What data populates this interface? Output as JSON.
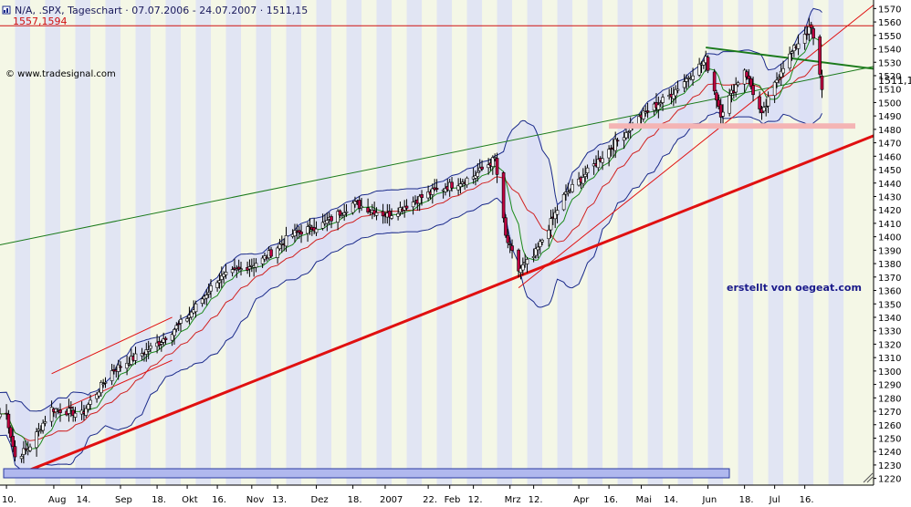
{
  "header": {
    "title_text": "N/A, .SPX, Tageschart · 07.07.2006 - 24.07.2007 · 1511,15",
    "ref_level_label": "1557,1594",
    "watermark": "© www.tradesignal.com",
    "credit": "erstellt von oegeat.com"
  },
  "colors": {
    "stripe_light": "#f4f7e6",
    "stripe_dark": "#e1e5f3",
    "up_candle": "#ffffff",
    "down_candle": "#c00040",
    "bollinger": "#1a2a8a",
    "ma_fast": "#1a8a1a",
    "ma_slow": "#d02020",
    "support_line": "#e01010",
    "green_trend": "#1a7a1a",
    "zone": "#f4b4b4",
    "bottom_bar": "#b0b8ee",
    "ref_line": "#d01010"
  },
  "chart_data": {
    "type": "candlestick",
    "title": "N/A, .SPX, Tageschart",
    "period": "07.07.2006 - 24.07.2007",
    "last_value": 1511.15,
    "last_value_label": "1511,15",
    "ylim": [
      1215,
      1575
    ],
    "y_ticks": [
      1220,
      1230,
      1240,
      1250,
      1260,
      1270,
      1280,
      1290,
      1300,
      1310,
      1320,
      1330,
      1340,
      1350,
      1360,
      1370,
      1380,
      1390,
      1400,
      1410,
      1420,
      1430,
      1440,
      1450,
      1460,
      1470,
      1480,
      1490,
      1500,
      1510,
      1520,
      1530,
      1540,
      1550,
      1560,
      1570
    ],
    "x_tick_labels": [
      "10.",
      "Aug",
      "14.",
      "Sep",
      "18.",
      "Okt",
      "16.",
      "Nov",
      "13.",
      "Dez",
      "18.",
      "2007",
      "22.",
      "Feb",
      "12.",
      "Mrz",
      "12.",
      "Apr",
      "16.",
      "Mai",
      "14.",
      "Jun",
      "18.",
      "Jul",
      "16."
    ],
    "reference_level": 1557.1594,
    "approx_close_path": [
      {
        "date": "2006-07-10",
        "close": 1268
      },
      {
        "date": "2006-07-14",
        "close": 1236
      },
      {
        "date": "2006-07-20",
        "close": 1242
      },
      {
        "date": "2006-07-31",
        "close": 1272
      },
      {
        "date": "2006-08-14",
        "close": 1268
      },
      {
        "date": "2006-08-28",
        "close": 1300
      },
      {
        "date": "2006-09-18",
        "close": 1320
      },
      {
        "date": "2006-10-02",
        "close": 1340
      },
      {
        "date": "2006-10-16",
        "close": 1368
      },
      {
        "date": "2006-11-06",
        "close": 1383
      },
      {
        "date": "2006-11-20",
        "close": 1402
      },
      {
        "date": "2006-12-05",
        "close": 1410
      },
      {
        "date": "2006-12-18",
        "close": 1425
      },
      {
        "date": "2007-01-03",
        "close": 1416
      },
      {
        "date": "2007-01-22",
        "close": 1432
      },
      {
        "date": "2007-02-12",
        "close": 1445
      },
      {
        "date": "2007-02-22",
        "close": 1458
      },
      {
        "date": "2007-02-27",
        "close": 1400
      },
      {
        "date": "2007-03-05",
        "close": 1375
      },
      {
        "date": "2007-03-12",
        "close": 1385
      },
      {
        "date": "2007-03-26",
        "close": 1430
      },
      {
        "date": "2007-04-16",
        "close": 1465
      },
      {
        "date": "2007-05-01",
        "close": 1490
      },
      {
        "date": "2007-05-14",
        "close": 1505
      },
      {
        "date": "2007-05-31",
        "close": 1532
      },
      {
        "date": "2007-06-07",
        "close": 1492
      },
      {
        "date": "2007-06-18",
        "close": 1525
      },
      {
        "date": "2007-06-26",
        "close": 1490
      },
      {
        "date": "2007-07-05",
        "close": 1525
      },
      {
        "date": "2007-07-16",
        "close": 1552
      },
      {
        "date": "2007-07-19",
        "close": 1555
      },
      {
        "date": "2007-07-24",
        "close": 1511
      }
    ],
    "trendlines": [
      {
        "name": "support",
        "from": {
          "date": "2006-07-14",
          "value": 1222
        },
        "to": {
          "date": "2007-07-24",
          "value": 1460
        }
      },
      {
        "name": "channel",
        "from": {
          "date": "2007-03-05",
          "value": 1362
        },
        "to": {
          "date": "2007-07-24",
          "value": 1542
        }
      },
      {
        "name": "long-trend",
        "from": {
          "date": "2006-07-07",
          "value": 1394
        },
        "to": {
          "date": "2007-07-24",
          "value": 1519
        }
      },
      {
        "name": "top-line",
        "from": {
          "date": "2007-05-31",
          "value": 1541
        },
        "to": {
          "date": "2007-07-24",
          "value": 1530
        }
      }
    ],
    "zone": {
      "from_date": "2007-04-16",
      "to_date": "2007-07-24",
      "low": 1481,
      "high": 1484
    }
  }
}
